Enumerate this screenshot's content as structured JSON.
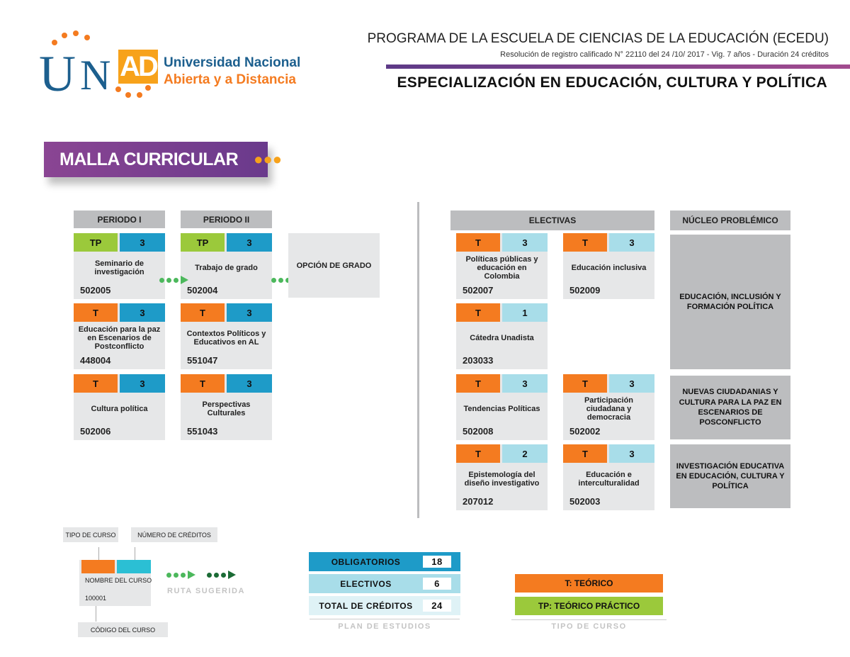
{
  "logo": {
    "letters": "UNAD",
    "line1": "Universidad Nacional",
    "line2": "Abierta y a Distancia"
  },
  "header": {
    "program": "PROGRAMA DE LA ESCUELA DE CIENCIAS DE LA EDUCACIÓN (ECEDU)",
    "resolution": "Resolución de registro calificado N° 22110 del 24 /10/ 2017 - Vig. 7 años - Duración 24 créditos",
    "title": "ESPECIALIZACIÓN EN EDUCACIÓN, CULTURA Y POLÍTICA"
  },
  "banner": {
    "label": "MALLA CURRICULAR"
  },
  "colors": {
    "teorico": "#f47b20",
    "teorico_practico": "#9bc93b",
    "credits_mandatory": "#1e9bc8",
    "credits_elective": "#a8dde9",
    "card": "#e6e7e8",
    "header": "#bcbdbf",
    "purple": "#7b3f8e"
  },
  "periods": [
    {
      "label": "PERIODO I",
      "courses": [
        {
          "type": "TP",
          "credits": "3",
          "name": "Seminario de investigación",
          "code": "502005"
        },
        {
          "type": "T",
          "credits": "3",
          "name": "Educación para la paz en Escenarios de Postconflicto",
          "code": "448004"
        },
        {
          "type": "T",
          "credits": "3",
          "name": "Cultura política",
          "code": "502006"
        }
      ]
    },
    {
      "label": "PERIODO II",
      "courses": [
        {
          "type": "TP",
          "credits": "3",
          "name": "Trabajo de grado",
          "code": "502004"
        },
        {
          "type": "T",
          "credits": "3",
          "name": "Contextos Políticos y Educativos en AL",
          "code": "551047"
        },
        {
          "type": "T",
          "credits": "3",
          "name": "Perspectivas Culturales",
          "code": "551043"
        }
      ]
    }
  ],
  "degree_option": "OPCIÓN DE GRADO",
  "electives": {
    "label": "ELECTIVAS",
    "courses": [
      {
        "type": "T",
        "credits": "3",
        "name": "Políticas públicas y educación en Colombia",
        "code": "502007"
      },
      {
        "type": "T",
        "credits": "3",
        "name": "Educación inclusiva",
        "code": "502009"
      },
      {
        "type": "T",
        "credits": "1",
        "name": "Cátedra Unadista",
        "code": "203033"
      },
      {
        "type": "T",
        "credits": "3",
        "name": "Tendencias Políticas",
        "code": "502008"
      },
      {
        "type": "T",
        "credits": "3",
        "name": "Participación ciudadana y democracia",
        "code": "502002"
      },
      {
        "type": "T",
        "credits": "2",
        "name": "Epistemología del diseño investigativo",
        "code": "207012"
      },
      {
        "type": "T",
        "credits": "3",
        "name": "Educación e interculturalidad",
        "code": "502003"
      }
    ]
  },
  "nucleo": {
    "label": "NÚCLEO PROBLÉMICO",
    "items": [
      "EDUCACIÓN, INCLUSIÓN Y FORMACIÓN POLÍTICA",
      "NUEVAS CIUDADANIAS Y CULTURA PARA LA PAZ EN ESCENARIOS DE POSCONFLICTO",
      "INVESTIGACIÓN EDUCATIVA EN EDUCACIÓN, CULTURA Y POLÍTICA"
    ]
  },
  "legend": {
    "tipo": "TIPO DE CURSO",
    "creditos": "NÚMERO DE CRÉDITOS",
    "nombre": "NOMBRE DEL CURSO",
    "codigo_val": "100001",
    "codigo": "CÓDIGO DEL CURSO",
    "ruta": "RUTA SUGERIDA"
  },
  "plan": {
    "caption": "PLAN DE ESTUDIOS",
    "rows": [
      {
        "label": "OBLIGATORIOS",
        "value": "18"
      },
      {
        "label": "ELECTIVOS",
        "value": "6"
      },
      {
        "label": "TOTAL DE CRÉDITOS",
        "value": "24"
      }
    ]
  },
  "tipo_curso": {
    "caption": "TIPO DE CURSO",
    "t": "T: TEÓRICO",
    "tp": "TP: TEÓRICO PRÁCTICO"
  }
}
